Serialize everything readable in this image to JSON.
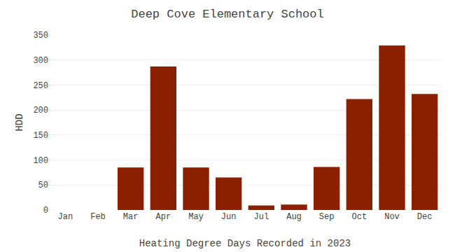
{
  "chart_data": {
    "type": "bar",
    "title": "Deep Cove Elementary School",
    "xlabel": "Heating Degree Days Recorded in 2023",
    "ylabel": "HDD",
    "categories": [
      "Jan",
      "Feb",
      "Mar",
      "Apr",
      "May",
      "Jun",
      "Jul",
      "Aug",
      "Sep",
      "Oct",
      "Nov",
      "Dec"
    ],
    "values": [
      0,
      0,
      85,
      287,
      85,
      65,
      9,
      11,
      86,
      222,
      329,
      232
    ],
    "color": "#8B2000",
    "ylim": [
      0,
      350
    ],
    "yticks": [
      0,
      50,
      100,
      150,
      200,
      250,
      300,
      350
    ],
    "grid": true
  }
}
